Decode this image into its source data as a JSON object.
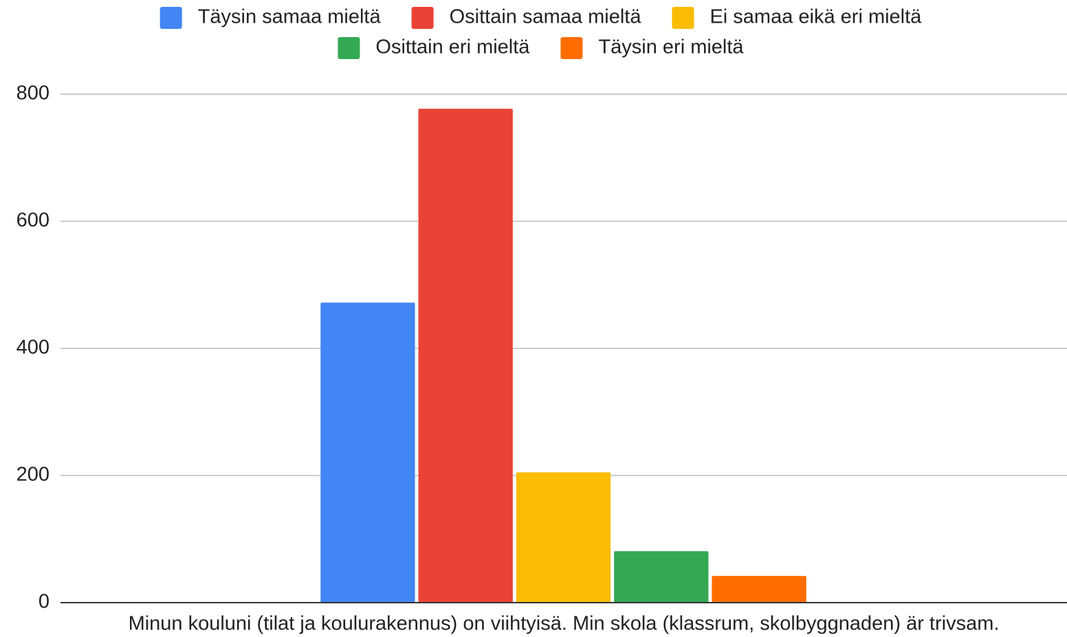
{
  "chart_data": {
    "type": "bar",
    "categories": [
      "Minun kouluni (tilat ja koulurakennus) on viihtyisä. Min skola (klassrum, skolbyggnaden) är trivsam."
    ],
    "series": [
      {
        "name": "Täysin samaa mieltä",
        "color": "#4285f4",
        "values": [
          472
        ]
      },
      {
        "name": "Osittain samaa mieltä",
        "color": "#ea4335",
        "values": [
          777
        ]
      },
      {
        "name": "Ei samaa eikä eri mieltä",
        "color": "#fbbc04",
        "values": [
          205
        ]
      },
      {
        "name": "Osittain eri mieltä",
        "color": "#34a853",
        "values": [
          81
        ]
      },
      {
        "name": "Täysin eri mieltä",
        "color": "#ff6d01",
        "values": [
          42
        ]
      }
    ],
    "ylim": [
      0,
      800
    ],
    "yticks": [
      0,
      200,
      400,
      600,
      800
    ],
    "grid": true,
    "legend": "top"
  }
}
